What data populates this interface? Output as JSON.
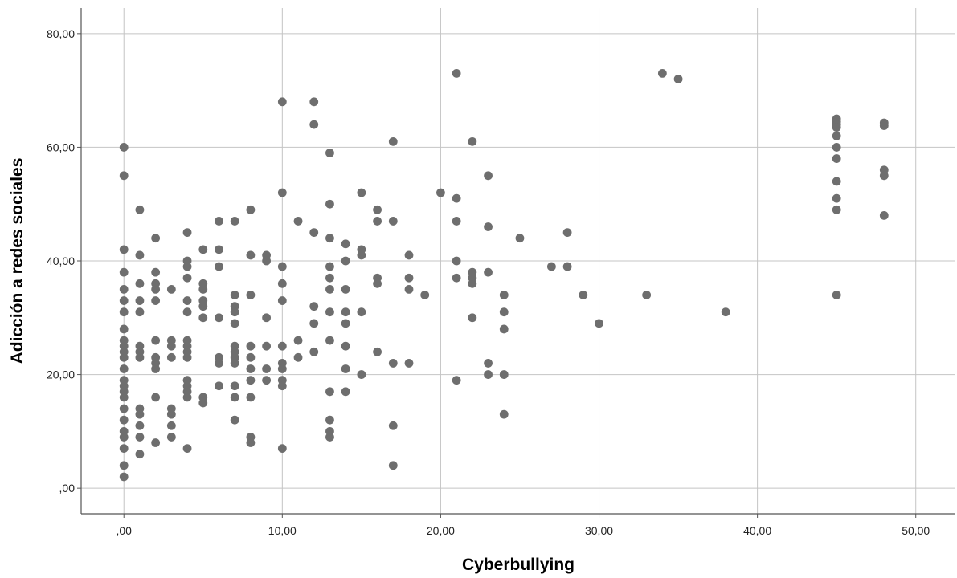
{
  "chart_data": {
    "type": "scatter",
    "title": "",
    "xlabel": "Cyberbullying",
    "ylabel": "Adicción a redes sociales",
    "xlim": [
      -2.7,
      52.5
    ],
    "ylim": [
      -4.5,
      84.5
    ],
    "x_ticks": [
      0,
      10,
      20,
      30,
      40,
      50
    ],
    "x_tick_labels": [
      ",00",
      "10,00",
      "20,00",
      "30,00",
      "40,00",
      "50,00"
    ],
    "y_ticks": [
      0,
      20,
      40,
      60,
      80
    ],
    "y_tick_labels": [
      ",00",
      "20,00",
      "40,00",
      "60,00",
      "80,00"
    ],
    "grid": true,
    "marker_color": "#6e6e6e",
    "points": [
      [
        0,
        60
      ],
      [
        0,
        55
      ],
      [
        0,
        42
      ],
      [
        0,
        38
      ],
      [
        0,
        35
      ],
      [
        0,
        33
      ],
      [
        0,
        31
      ],
      [
        0,
        28
      ],
      [
        0,
        26
      ],
      [
        0,
        25
      ],
      [
        0,
        24
      ],
      [
        0,
        23
      ],
      [
        0,
        21
      ],
      [
        0,
        19
      ],
      [
        0,
        18
      ],
      [
        0,
        17
      ],
      [
        0,
        16
      ],
      [
        0,
        14
      ],
      [
        0,
        12
      ],
      [
        0,
        10
      ],
      [
        0,
        9
      ],
      [
        0,
        7
      ],
      [
        0,
        4
      ],
      [
        0,
        2
      ],
      [
        1,
        49
      ],
      [
        1,
        41
      ],
      [
        1,
        36
      ],
      [
        1,
        33
      ],
      [
        1,
        31
      ],
      [
        1,
        25
      ],
      [
        1,
        24
      ],
      [
        1,
        23
      ],
      [
        1,
        14
      ],
      [
        1,
        13
      ],
      [
        1,
        11
      ],
      [
        1,
        9
      ],
      [
        1,
        6
      ],
      [
        2,
        44
      ],
      [
        2,
        38
      ],
      [
        2,
        36
      ],
      [
        2,
        35
      ],
      [
        2,
        33
      ],
      [
        2,
        26
      ],
      [
        2,
        23
      ],
      [
        2,
        22
      ],
      [
        2,
        21
      ],
      [
        2,
        16
      ],
      [
        2,
        8
      ],
      [
        3,
        35
      ],
      [
        3,
        26
      ],
      [
        3,
        25
      ],
      [
        3,
        23
      ],
      [
        3,
        14
      ],
      [
        3,
        13
      ],
      [
        3,
        11
      ],
      [
        3,
        9
      ],
      [
        4,
        45
      ],
      [
        4,
        40
      ],
      [
        4,
        39
      ],
      [
        4,
        37
      ],
      [
        4,
        33
      ],
      [
        4,
        31
      ],
      [
        4,
        26
      ],
      [
        4,
        25
      ],
      [
        4,
        24
      ],
      [
        4,
        23
      ],
      [
        4,
        19
      ],
      [
        4,
        18
      ],
      [
        4,
        17
      ],
      [
        4,
        16
      ],
      [
        4,
        7
      ],
      [
        5,
        42
      ],
      [
        5,
        36
      ],
      [
        5,
        35
      ],
      [
        5,
        33
      ],
      [
        5,
        32
      ],
      [
        5,
        30
      ],
      [
        5,
        16
      ],
      [
        5,
        15
      ],
      [
        6,
        47
      ],
      [
        6,
        42
      ],
      [
        6,
        39
      ],
      [
        6,
        30
      ],
      [
        6,
        23
      ],
      [
        6,
        22
      ],
      [
        6,
        18
      ],
      [
        7,
        47
      ],
      [
        7,
        34
      ],
      [
        7,
        32
      ],
      [
        7,
        31
      ],
      [
        7,
        29
      ],
      [
        7,
        25
      ],
      [
        7,
        24
      ],
      [
        7,
        23
      ],
      [
        7,
        22
      ],
      [
        7,
        18
      ],
      [
        7,
        16
      ],
      [
        7,
        12
      ],
      [
        8,
        49
      ],
      [
        8,
        41
      ],
      [
        8,
        34
      ],
      [
        8,
        25
      ],
      [
        8,
        23
      ],
      [
        8,
        21
      ],
      [
        8,
        19
      ],
      [
        8,
        16
      ],
      [
        8,
        9
      ],
      [
        8,
        8
      ],
      [
        9,
        41
      ],
      [
        9,
        40
      ],
      [
        9,
        30
      ],
      [
        9,
        25
      ],
      [
        9,
        21
      ],
      [
        9,
        19
      ],
      [
        10,
        68
      ],
      [
        10,
        52
      ],
      [
        10,
        39
      ],
      [
        10,
        36
      ],
      [
        10,
        33
      ],
      [
        10,
        25
      ],
      [
        10,
        22
      ],
      [
        10,
        21
      ],
      [
        10,
        19
      ],
      [
        10,
        18
      ],
      [
        10,
        7
      ],
      [
        11,
        47
      ],
      [
        11,
        26
      ],
      [
        11,
        23
      ],
      [
        12,
        68
      ],
      [
        12,
        64
      ],
      [
        12,
        45
      ],
      [
        12,
        32
      ],
      [
        12,
        29
      ],
      [
        12,
        24
      ],
      [
        13,
        59
      ],
      [
        13,
        50
      ],
      [
        13,
        44
      ],
      [
        13,
        39
      ],
      [
        13,
        37
      ],
      [
        13,
        35
      ],
      [
        13,
        31
      ],
      [
        13,
        26
      ],
      [
        13,
        17
      ],
      [
        13,
        12
      ],
      [
        13,
        10
      ],
      [
        13,
        9
      ],
      [
        14,
        43
      ],
      [
        14,
        40
      ],
      [
        14,
        35
      ],
      [
        14,
        31
      ],
      [
        14,
        29
      ],
      [
        14,
        25
      ],
      [
        14,
        21
      ],
      [
        14,
        17
      ],
      [
        15,
        52
      ],
      [
        15,
        42
      ],
      [
        15,
        41
      ],
      [
        15,
        31
      ],
      [
        15,
        20
      ],
      [
        16,
        49
      ],
      [
        16,
        47
      ],
      [
        16,
        37
      ],
      [
        16,
        36
      ],
      [
        16,
        24
      ],
      [
        17,
        61
      ],
      [
        17,
        47
      ],
      [
        17,
        22
      ],
      [
        17,
        11
      ],
      [
        17,
        4
      ],
      [
        18,
        41
      ],
      [
        18,
        37
      ],
      [
        18,
        35
      ],
      [
        18,
        22
      ],
      [
        19,
        34
      ],
      [
        20,
        52
      ],
      [
        21,
        73
      ],
      [
        21,
        51
      ],
      [
        21,
        47
      ],
      [
        21,
        40
      ],
      [
        21,
        37
      ],
      [
        21,
        19
      ],
      [
        22,
        61
      ],
      [
        22,
        38
      ],
      [
        22,
        37
      ],
      [
        22,
        36
      ],
      [
        22,
        30
      ],
      [
        23,
        55
      ],
      [
        23,
        46
      ],
      [
        23,
        38
      ],
      [
        23,
        22
      ],
      [
        23,
        20
      ],
      [
        24,
        34
      ],
      [
        24,
        31
      ],
      [
        24,
        28
      ],
      [
        24,
        20
      ],
      [
        24,
        13
      ],
      [
        25,
        44
      ],
      [
        27,
        39
      ],
      [
        28,
        45
      ],
      [
        28,
        39
      ],
      [
        29,
        34
      ],
      [
        30,
        29
      ],
      [
        33,
        34
      ],
      [
        34,
        73
      ],
      [
        35,
        72
      ],
      [
        38,
        31
      ],
      [
        45,
        65
      ],
      [
        45,
        64.5
      ],
      [
        45,
        64
      ],
      [
        45,
        63.5
      ],
      [
        45,
        62
      ],
      [
        45,
        60
      ],
      [
        45,
        58
      ],
      [
        45,
        54
      ],
      [
        45,
        51
      ],
      [
        45,
        49
      ],
      [
        45,
        34
      ],
      [
        48,
        64.3
      ],
      [
        48,
        63.8
      ],
      [
        48,
        56
      ],
      [
        48,
        55
      ],
      [
        48,
        48
      ]
    ]
  }
}
